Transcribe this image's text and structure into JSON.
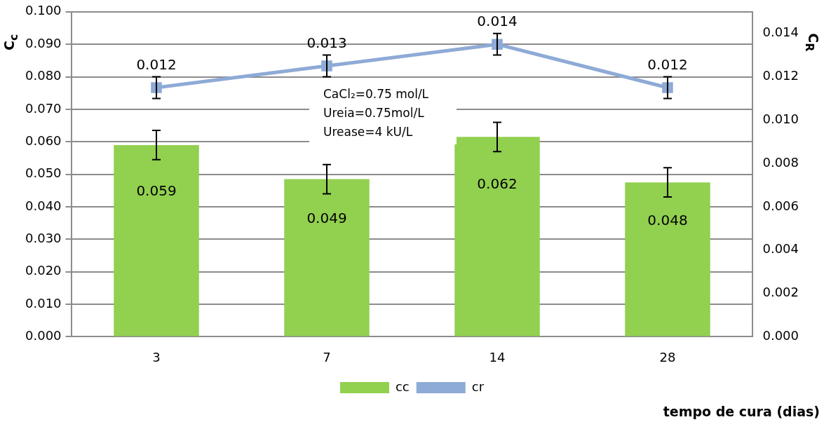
{
  "chart_data": {
    "type": "bar",
    "categories": [
      "3",
      "7",
      "14",
      "28"
    ],
    "series": [
      {
        "name": "cc",
        "color": "#92d050",
        "values": [
          0.059,
          0.0485,
          0.0615,
          0.0475
        ],
        "errors": [
          0.0045,
          0.0045,
          0.0045,
          0.0045
        ],
        "value_labels": [
          "0.059",
          "0.049",
          "0.062",
          "0.048"
        ]
      },
      {
        "name": "cr",
        "type": "line",
        "axis": "y2",
        "color": "#8eaad6",
        "marker": "square",
        "values": [
          0.0115,
          0.0125,
          0.0135,
          0.0115
        ],
        "errors": [
          0.0005,
          0.0005,
          0.0005,
          0.0005
        ],
        "value_labels": [
          "0.012",
          "0.013",
          "0.014",
          "0.012"
        ]
      }
    ],
    "ylabel": "C$_{c}$",
    "y2label": "C$_{R}$",
    "xlabel": "tempo de cura (dias)",
    "ylim": [
      0,
      0.1
    ],
    "yticks": [
      {
        "value": 0,
        "label": "0.000"
      },
      {
        "value": 0.01,
        "label": "0.010"
      },
      {
        "value": 0.02,
        "label": "0.020"
      },
      {
        "value": 0.03,
        "label": "0.030"
      },
      {
        "value": 0.04,
        "label": "0.040"
      },
      {
        "value": 0.05,
        "label": "0.050"
      },
      {
        "value": 0.06,
        "label": "0.060"
      },
      {
        "value": 0.07,
        "label": "0.070"
      },
      {
        "value": 0.08,
        "label": "0.080"
      },
      {
        "value": 0.09,
        "label": "0.090"
      },
      {
        "value": 0.1,
        "label": "0.100"
      }
    ],
    "y2lim": [
      0,
      0.015
    ],
    "y2ticks": [
      {
        "value": 0,
        "label": "0.000"
      },
      {
        "value": 0.002,
        "label": "0.002"
      },
      {
        "value": 0.004,
        "label": "0.004"
      },
      {
        "value": 0.006,
        "label": "0.006"
      },
      {
        "value": 0.008,
        "label": "0.008"
      },
      {
        "value": 0.01,
        "label": "0.010"
      },
      {
        "value": 0.012,
        "label": "0.012"
      },
      {
        "value": 0.014,
        "label": "0.014"
      }
    ],
    "annotations": [
      "CaCl₂=0.75 mol/L",
      "Ureia=0.75mol/L",
      "Urease=4 kU/L"
    ],
    "grid": "y",
    "legend": "bottom"
  }
}
